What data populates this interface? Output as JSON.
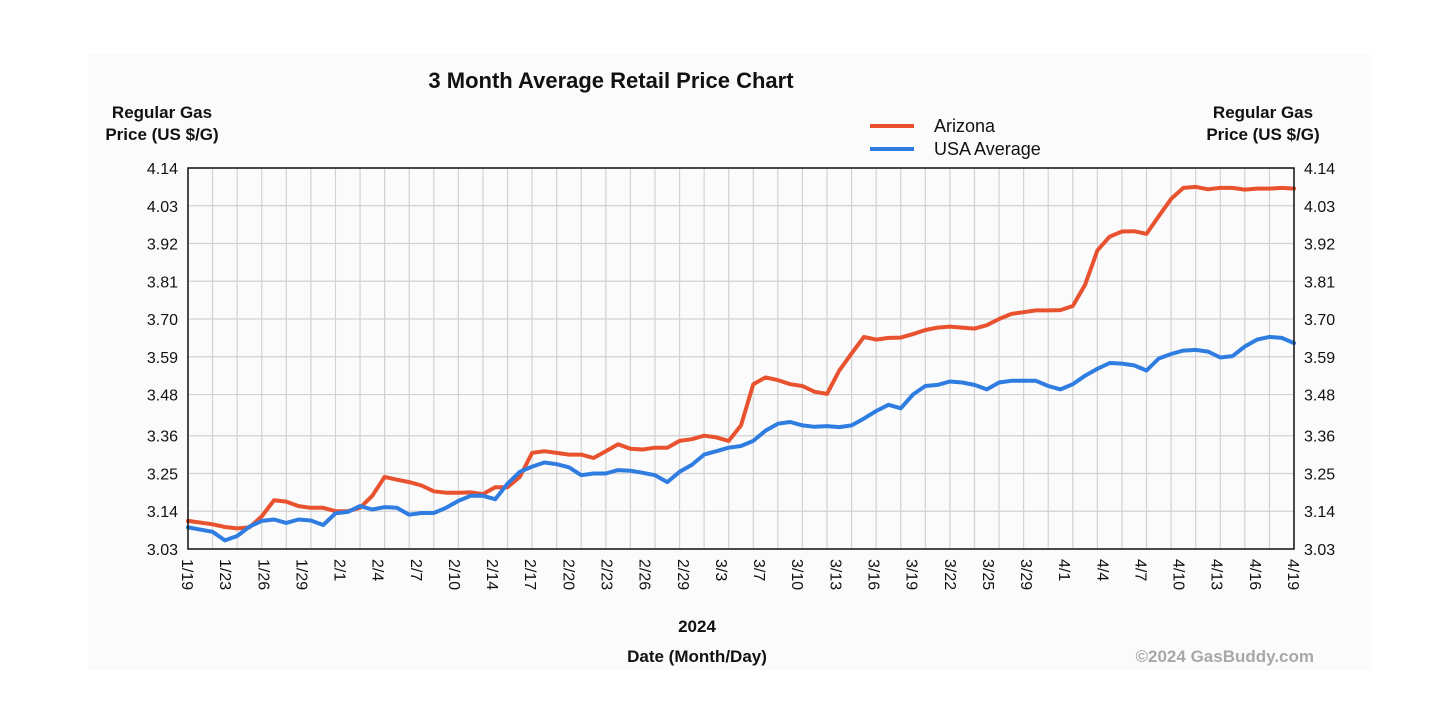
{
  "chart_data": {
    "type": "line",
    "title": "3 Month Average Retail Price Chart",
    "ylabel_left": [
      "Regular Gas",
      "Price (US $/G)"
    ],
    "ylabel_right": [
      "Regular Gas",
      "Price (US $/G)"
    ],
    "xlabel_year": "2024",
    "xlabel": "Date (Month/Day)",
    "credit": "©2024 GasBuddy.com",
    "grid": true,
    "legend_position": "top-right",
    "ylim": [
      3.03,
      4.14
    ],
    "y_ticks": [
      3.03,
      3.14,
      3.25,
      3.36,
      3.48,
      3.59,
      3.7,
      3.81,
      3.92,
      4.03,
      4.14
    ],
    "y_tick_labels": [
      "3.03",
      "3.14",
      "3.25",
      "3.36",
      "3.48",
      "3.59",
      "3.70",
      "3.81",
      "3.92",
      "4.03",
      "4.14"
    ],
    "x_tick_labels": [
      "1/19",
      "1/23",
      "1/26",
      "1/29",
      "2/1",
      "2/4",
      "2/7",
      "2/10",
      "2/14",
      "2/17",
      "2/20",
      "2/23",
      "2/26",
      "2/29",
      "3/3",
      "3/7",
      "3/10",
      "3/13",
      "3/16",
      "3/19",
      "3/22",
      "3/25",
      "3/29",
      "4/1",
      "4/4",
      "4/7",
      "4/10",
      "4/13",
      "4/16",
      "4/19"
    ],
    "series": [
      {
        "name": "Arizona",
        "color": "#e8522f",
        "points": [
          [
            0,
            3.112
          ],
          [
            1,
            3.102
          ],
          [
            1.5,
            3.094
          ],
          [
            2,
            3.09
          ],
          [
            2.5,
            3.093
          ],
          [
            3,
            3.125
          ],
          [
            3.5,
            3.172
          ],
          [
            4,
            3.168
          ],
          [
            4.5,
            3.155
          ],
          [
            5,
            3.15
          ],
          [
            5.5,
            3.15
          ],
          [
            6,
            3.14
          ],
          [
            6.5,
            3.14
          ],
          [
            7,
            3.15
          ],
          [
            7.5,
            3.185
          ],
          [
            8,
            3.24
          ],
          [
            8.5,
            3.232
          ],
          [
            9,
            3.225
          ],
          [
            9.5,
            3.215
          ],
          [
            10,
            3.198
          ],
          [
            10.5,
            3.194
          ],
          [
            11,
            3.194
          ],
          [
            11.5,
            3.195
          ],
          [
            12,
            3.19
          ],
          [
            12.5,
            3.21
          ],
          [
            13,
            3.21
          ],
          [
            13.5,
            3.24
          ],
          [
            14,
            3.31
          ],
          [
            14.5,
            3.315
          ],
          [
            15,
            3.31
          ],
          [
            15.5,
            3.305
          ],
          [
            16,
            3.305
          ],
          [
            16.5,
            3.295
          ],
          [
            17,
            3.315
          ],
          [
            17.5,
            3.335
          ],
          [
            18,
            3.322
          ],
          [
            18.5,
            3.32
          ],
          [
            19,
            3.325
          ],
          [
            19.5,
            3.325
          ],
          [
            20,
            3.345
          ],
          [
            20.5,
            3.35
          ],
          [
            21,
            3.36
          ],
          [
            21.5,
            3.355
          ],
          [
            22,
            3.345
          ],
          [
            22.5,
            3.39
          ],
          [
            23,
            3.51
          ],
          [
            23.5,
            3.53
          ],
          [
            24,
            3.522
          ],
          [
            24.5,
            3.51
          ],
          [
            25,
            3.505
          ],
          [
            25.5,
            3.488
          ],
          [
            26,
            3.482
          ],
          [
            26.5,
            3.55
          ],
          [
            27,
            3.6
          ],
          [
            27.5,
            3.648
          ],
          [
            28,
            3.64
          ],
          [
            28.5,
            3.645
          ],
          [
            29,
            3.646
          ],
          [
            29.5,
            3.656
          ],
          [
            30,
            3.668
          ],
          [
            30.5,
            3.675
          ],
          [
            31,
            3.678
          ],
          [
            31.5,
            3.675
          ],
          [
            32,
            3.672
          ],
          [
            32.5,
            3.682
          ],
          [
            33,
            3.7
          ],
          [
            33.5,
            3.715
          ],
          [
            34,
            3.72
          ],
          [
            34.5,
            3.725
          ],
          [
            35,
            3.725
          ],
          [
            35.5,
            3.726
          ],
          [
            36,
            3.738
          ],
          [
            36.5,
            3.8
          ],
          [
            37,
            3.9
          ],
          [
            37.5,
            3.94
          ],
          [
            38,
            3.955
          ],
          [
            38.5,
            3.956
          ],
          [
            39,
            3.948
          ],
          [
            39.5,
            4.0
          ],
          [
            40,
            4.05
          ],
          [
            40.5,
            4.082
          ],
          [
            41,
            4.085
          ],
          [
            41.5,
            4.078
          ],
          [
            42,
            4.082
          ],
          [
            42.5,
            4.082
          ],
          [
            43,
            4.077
          ],
          [
            43.5,
            4.08
          ],
          [
            44,
            4.08
          ],
          [
            44.5,
            4.082
          ],
          [
            45,
            4.08
          ]
        ]
      },
      {
        "name": "USA Average",
        "color": "#2f7de1",
        "points": [
          [
            0,
            3.093
          ],
          [
            1,
            3.08
          ],
          [
            1.5,
            3.055
          ],
          [
            2,
            3.068
          ],
          [
            2.5,
            3.095
          ],
          [
            3,
            3.112
          ],
          [
            3.5,
            3.116
          ],
          [
            4,
            3.106
          ],
          [
            4.5,
            3.116
          ],
          [
            5,
            3.113
          ],
          [
            5.5,
            3.1
          ],
          [
            6,
            3.134
          ],
          [
            6.5,
            3.138
          ],
          [
            7,
            3.155
          ],
          [
            7.5,
            3.145
          ],
          [
            8,
            3.152
          ],
          [
            8.5,
            3.15
          ],
          [
            9,
            3.13
          ],
          [
            9.5,
            3.135
          ],
          [
            10,
            3.135
          ],
          [
            10.5,
            3.15
          ],
          [
            11,
            3.17
          ],
          [
            11.5,
            3.185
          ],
          [
            12,
            3.185
          ],
          [
            12.5,
            3.175
          ],
          [
            13,
            3.22
          ],
          [
            13.5,
            3.255
          ],
          [
            14,
            3.27
          ],
          [
            14.5,
            3.282
          ],
          [
            15,
            3.277
          ],
          [
            15.5,
            3.268
          ],
          [
            16,
            3.245
          ],
          [
            16.5,
            3.25
          ],
          [
            17,
            3.25
          ],
          [
            17.5,
            3.26
          ],
          [
            18,
            3.258
          ],
          [
            18.5,
            3.252
          ],
          [
            19,
            3.245
          ],
          [
            19.5,
            3.225
          ],
          [
            20,
            3.255
          ],
          [
            20.5,
            3.275
          ],
          [
            21,
            3.305
          ],
          [
            21.5,
            3.315
          ],
          [
            22,
            3.325
          ],
          [
            22.5,
            3.33
          ],
          [
            23,
            3.345
          ],
          [
            23.5,
            3.375
          ],
          [
            24,
            3.395
          ],
          [
            24.5,
            3.4
          ],
          [
            25,
            3.39
          ],
          [
            25.5,
            3.386
          ],
          [
            26,
            3.388
          ],
          [
            26.5,
            3.385
          ],
          [
            27,
            3.39
          ],
          [
            27.5,
            3.41
          ],
          [
            28,
            3.432
          ],
          [
            28.5,
            3.45
          ],
          [
            29,
            3.44
          ],
          [
            29.5,
            3.48
          ],
          [
            30,
            3.505
          ],
          [
            30.5,
            3.508
          ],
          [
            31,
            3.518
          ],
          [
            31.5,
            3.515
          ],
          [
            32,
            3.508
          ],
          [
            32.5,
            3.495
          ],
          [
            33,
            3.515
          ],
          [
            33.5,
            3.52
          ],
          [
            34,
            3.52
          ],
          [
            34.5,
            3.52
          ],
          [
            35,
            3.505
          ],
          [
            35.5,
            3.495
          ],
          [
            36,
            3.51
          ],
          [
            36.5,
            3.535
          ],
          [
            37,
            3.555
          ],
          [
            37.5,
            3.572
          ],
          [
            38,
            3.57
          ],
          [
            38.5,
            3.565
          ],
          [
            39,
            3.55
          ],
          [
            39.5,
            3.585
          ],
          [
            40,
            3.598
          ],
          [
            40.5,
            3.608
          ],
          [
            41,
            3.61
          ],
          [
            41.5,
            3.605
          ],
          [
            42,
            3.588
          ],
          [
            42.5,
            3.592
          ],
          [
            43,
            3.62
          ],
          [
            43.5,
            3.64
          ],
          [
            44,
            3.648
          ],
          [
            44.5,
            3.645
          ],
          [
            45,
            3.63
          ]
        ]
      }
    ]
  }
}
